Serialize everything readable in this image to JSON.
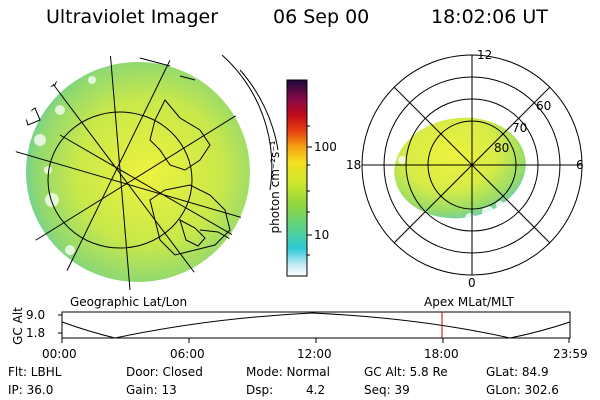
{
  "header": {
    "instrument": "Ultraviolet Imager",
    "date": "06 Sep 00",
    "time": "18:02:06 UT"
  },
  "map_left": {
    "label": "Geographic Lat/Lon"
  },
  "map_right": {
    "label": "Apex MLat/MLT",
    "mlt_labels": [
      "12",
      "18",
      "6",
      "0"
    ],
    "lat_labels": [
      "60",
      "70",
      "80"
    ]
  },
  "colorbar": {
    "unit_label": "photon cm⁻²s⁻¹",
    "ticks": [
      "100",
      "10"
    ],
    "scale": "log"
  },
  "orbit_plot": {
    "ylabel": "GC Alt",
    "yticks": [
      "9.0",
      "1.8"
    ],
    "xticks": [
      "00:00",
      "06:00",
      "12:00",
      "18:00",
      "23:59"
    ],
    "marker_time": "18:02"
  },
  "status": {
    "flt": "Flt: LBHL",
    "ip": "IP: 36.0",
    "door": "Door: Closed",
    "gain": "Gain: 13",
    "mode": "Mode: Normal",
    "dsp_label": "Dsp:",
    "dsp_value": "4.2",
    "gcalt": "GC Alt: 5.8 Re",
    "seq": "Seq: 39",
    "glat": "GLat:  84.9",
    "glon": "GLon: 302.6"
  },
  "colors": {
    "background": "#ffffff",
    "marker": "#c00000",
    "aurora_low": "#7fd27a",
    "aurora_mid": "#c8e84a",
    "aurora_high": "#f0f23a"
  }
}
